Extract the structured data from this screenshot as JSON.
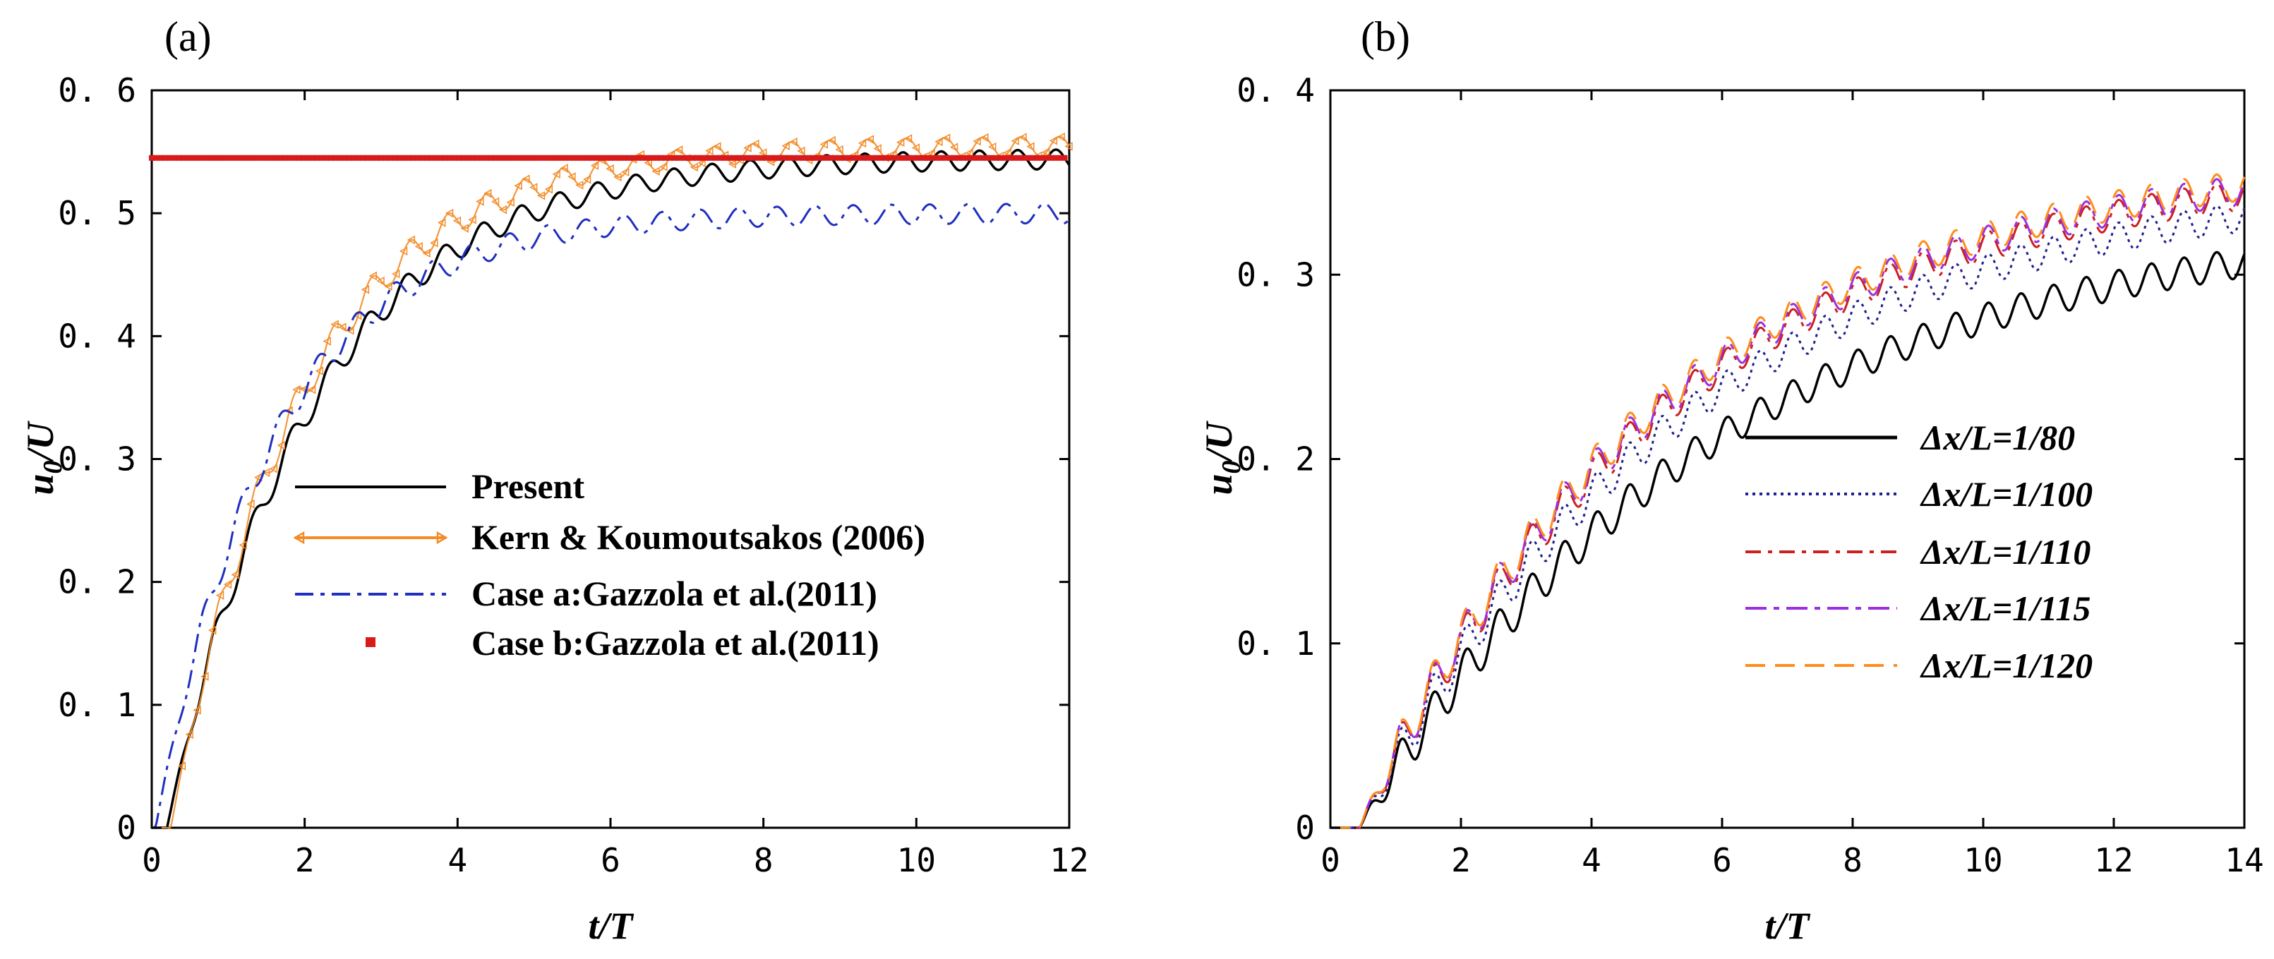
{
  "chart_data": [
    {
      "panel_label": "(a)",
      "type": "line",
      "xlabel": "t/T",
      "ylabel_main": "u",
      "ylabel_sub": "0",
      "ylabel_tail": "/U",
      "xlim": [
        0,
        12
      ],
      "ylim": [
        0,
        0.6
      ],
      "xticks": [
        0,
        2,
        4,
        6,
        8,
        10,
        12
      ],
      "yticks": [
        0,
        0.1,
        0.2,
        0.3,
        0.4,
        0.5,
        0.6
      ],
      "xtick_labels": [
        "0",
        "2",
        "4",
        "6",
        "8",
        "10",
        "12"
      ],
      "ytick_labels": [
        "0",
        "0. 1",
        "0. 2",
        "0. 3",
        "0. 4",
        "0. 5",
        "0. 6"
      ],
      "legend_placement": "center-right",
      "series": [
        {
          "name": "Present",
          "color": "#000000",
          "style": "solid",
          "tmax": 12,
          "start": 0.2,
          "ss": 0.545,
          "tau": 1.9,
          "amp": 0.012,
          "amp_min": 0.008
        },
        {
          "name": "Kern & Koumoutsakos (2006)",
          "color": "#f28c28",
          "style": "triangle",
          "tmax": 12,
          "start": 0.25,
          "ss": 0.555,
          "tau": 1.7,
          "amp": 0.014,
          "amp_min": 0.008
        },
        {
          "name": "Case a:Gazzola et al.(2011)",
          "color": "#1f2fbf",
          "style": "dashdot",
          "tmax": 12,
          "start": 0.05,
          "ss": 0.5,
          "tau": 1.55,
          "amp": 0.012,
          "amp_min": 0.008
        },
        {
          "name": "Case b:Gazzola et al.(2011)",
          "color": "#d91a1a",
          "style": "square",
          "constant": 0.545,
          "tmax": 12
        }
      ]
    },
    {
      "panel_label": "(b)",
      "type": "line",
      "xlabel": "t/T",
      "ylabel_main": "u",
      "ylabel_sub": "0",
      "ylabel_tail": "/U",
      "xlim": [
        0,
        14
      ],
      "ylim": [
        0,
        0.4
      ],
      "xticks": [
        0,
        2,
        4,
        6,
        8,
        10,
        12,
        14
      ],
      "yticks": [
        0,
        0.1,
        0.2,
        0.3,
        0.4
      ],
      "xtick_labels": [
        "0",
        "2",
        "4",
        "6",
        "8",
        "10",
        "12",
        "14"
      ],
      "ytick_labels": [
        "0",
        "0. 1",
        "0. 2",
        "0. 3",
        "0. 4"
      ],
      "legend_placement": "center-right",
      "series": [
        {
          "name": "Δx/L=1/80",
          "color": "#000000",
          "style": "solid",
          "tmax": 14,
          "start": 0.45,
          "ss": 0.335,
          "tau": 5.5,
          "amp": 0.012,
          "amp_min": 0.008
        },
        {
          "name": "Δx/L=1/100",
          "color": "#1f1f8f",
          "style": "dotted",
          "tmax": 14,
          "start": 0.45,
          "ss": 0.355,
          "tau": 5.0,
          "amp": 0.012,
          "amp_min": 0.008
        },
        {
          "name": "Δx/L=1/110",
          "color": "#cc1f1f",
          "style": "dashdot",
          "tmax": 14,
          "start": 0.45,
          "ss": 0.365,
          "tau": 4.8,
          "amp": 0.012,
          "amp_min": 0.008
        },
        {
          "name": "Δx/L=1/115",
          "color": "#9b30e0",
          "style": "dashdot2",
          "tmax": 14,
          "start": 0.45,
          "ss": 0.367,
          "tau": 4.75,
          "amp": 0.012,
          "amp_min": 0.008
        },
        {
          "name": "Δx/L=1/120",
          "color": "#ff8c1a",
          "style": "dashed",
          "tmax": 14,
          "start": 0.45,
          "ss": 0.369,
          "tau": 4.7,
          "amp": 0.012,
          "amp_min": 0.008
        }
      ]
    }
  ]
}
